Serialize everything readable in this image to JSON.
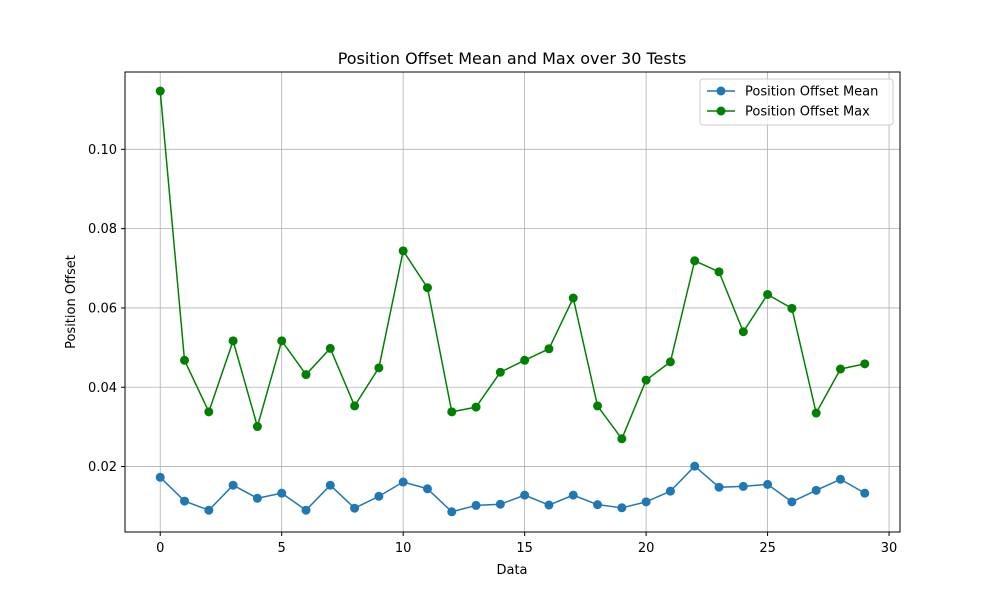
{
  "chart_data": {
    "type": "line",
    "title": "Position Offset Mean and Max over 30 Tests",
    "xlabel": "Data",
    "ylabel": "Position Offset",
    "xlim": [
      -1.45,
      30.45
    ],
    "ylim": [
      0.0035,
      0.1195
    ],
    "xticks": [
      0,
      5,
      10,
      15,
      20,
      25,
      30
    ],
    "yticks": [
      0.02,
      0.04,
      0.06,
      0.08,
      0.1
    ],
    "xtick_labels": [
      "0",
      "5",
      "10",
      "15",
      "20",
      "25",
      "30"
    ],
    "ytick_labels": [
      "0.02",
      "0.04",
      "0.06",
      "0.08",
      "0.10"
    ],
    "grid": true,
    "legend_position": "top-right",
    "x": [
      0,
      1,
      2,
      3,
      4,
      5,
      6,
      7,
      8,
      9,
      10,
      11,
      12,
      13,
      14,
      15,
      16,
      17,
      18,
      19,
      20,
      21,
      22,
      23,
      24,
      25,
      26,
      27,
      28,
      29
    ],
    "series": [
      {
        "name": "Position Offset Mean",
        "color": "#1f77b4",
        "marker": "circle",
        "values": [
          0.0173,
          0.0113,
          0.009,
          0.0153,
          0.012,
          0.0133,
          0.009,
          0.0153,
          0.0095,
          0.0125,
          0.0161,
          0.0144,
          0.0086,
          0.0102,
          0.0105,
          0.0128,
          0.0103,
          0.0128,
          0.0104,
          0.0096,
          0.0111,
          0.0138,
          0.0201,
          0.0148,
          0.015,
          0.0155,
          0.0111,
          0.014,
          0.0168,
          0.0133
        ]
      },
      {
        "name": "Position Offset Max",
        "color": "#008000",
        "marker": "circle",
        "values": [
          0.1147,
          0.0468,
          0.0338,
          0.0517,
          0.0301,
          0.0517,
          0.0432,
          0.0498,
          0.0353,
          0.0449,
          0.0744,
          0.0651,
          0.0338,
          0.035,
          0.0438,
          0.0468,
          0.0497,
          0.0625,
          0.0353,
          0.027,
          0.0418,
          0.0464,
          0.0719,
          0.0691,
          0.054,
          0.0634,
          0.0599,
          0.0335,
          0.0446,
          0.0459
        ]
      }
    ]
  }
}
